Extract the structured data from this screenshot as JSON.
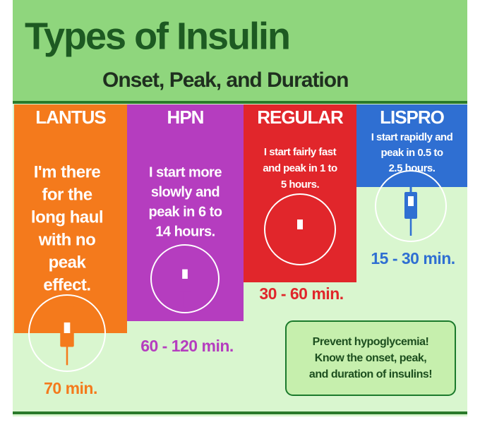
{
  "header": {
    "title": "Types of Insulin",
    "subtitle": "Onset, Peak, and Duration"
  },
  "columns": [
    {
      "name": "LANTUS",
      "description": [
        "I'm there",
        "for the",
        "long haul",
        "with no",
        "peak",
        "effect."
      ],
      "time": "70 min."
    },
    {
      "name": "HPN",
      "description": [
        "I start more",
        "slowly and",
        "peak in 6 to",
        "14 hours."
      ],
      "time": "60 - 120 min."
    },
    {
      "name": "REGULAR",
      "description": [
        "I start fairly fast",
        "and peak in 1 to",
        "5 hours."
      ],
      "time": "30 - 60 min."
    },
    {
      "name": "LISPRO",
      "description": [
        "I start rapidly and",
        "peak in 0.5 to",
        "2.5 hours."
      ],
      "time": "15 - 30 min."
    }
  ],
  "note": [
    "Prevent hypoglycemia!",
    "Know the onset, peak,",
    "and duration of insulins!"
  ]
}
